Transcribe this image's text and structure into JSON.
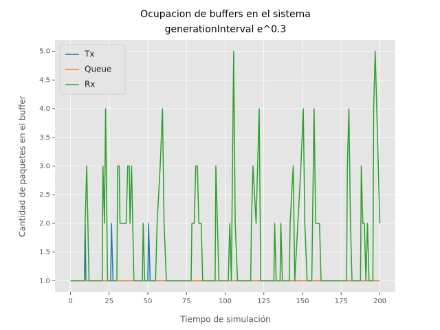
{
  "chart_data": {
    "type": "line",
    "title": [
      "Ocupacion de buffers en el sistema",
      "generationInterval e^0.3"
    ],
    "xlabel": "Tiempo de simulación",
    "ylabel": "Cantidad de paquetes en el buffer",
    "xlim": [
      -10,
      210
    ],
    "ylim": [
      0.8,
      5.2
    ],
    "xticks": [
      0,
      25,
      50,
      75,
      100,
      125,
      150,
      175,
      200
    ],
    "yticks": [
      {
        "value": 1,
        "label": "1.0"
      },
      {
        "value": 1.5,
        "label": "1.5"
      },
      {
        "value": 2,
        "label": "2.0"
      },
      {
        "value": 2.5,
        "label": "2.5"
      },
      {
        "value": 3,
        "label": "3.0"
      },
      {
        "value": 3.5,
        "label": "3.5"
      },
      {
        "value": 4,
        "label": "4.0"
      },
      {
        "value": 4.5,
        "label": "4.5"
      },
      {
        "value": 5,
        "label": "5.0"
      }
    ],
    "grid": true,
    "legend": "upper left",
    "series": [
      {
        "name": "Tx",
        "color": "#1f77b4",
        "x": [
          0,
          9,
          9.5,
          10,
          26,
          26.5,
          27.5,
          50,
          50.5,
          51.5,
          200
        ],
        "values": [
          1,
          1,
          2,
          1,
          1,
          2,
          1,
          1,
          2,
          1,
          1
        ]
      },
      {
        "name": "Queue",
        "color": "#ff7f0e",
        "x": [
          0,
          200
        ],
        "values": [
          1,
          1
        ]
      },
      {
        "name": "Rx",
        "color": "#2ca02c",
        "x": [
          0,
          9,
          9.5,
          10.5,
          12,
          20.5,
          21,
          22,
          22.7,
          24,
          30,
          30.5,
          31.5,
          32,
          36,
          37,
          38,
          38.5,
          39.5,
          41,
          46.5,
          47,
          48,
          55,
          56,
          58,
          59.5,
          60.5,
          62,
          78,
          78.5,
          80,
          81,
          82,
          83,
          84.5,
          85.5,
          93.5,
          94,
          95,
          96,
          102,
          103,
          104,
          105.5,
          106.5,
          108,
          116.5,
          117,
          118,
          120,
          121,
          122,
          123,
          131.5,
          132,
          133,
          135.5,
          136,
          137,
          141.5,
          142,
          144,
          145,
          147,
          149,
          150.5,
          151.5,
          153,
          156,
          157,
          157.5,
          158.5,
          161,
          162,
          178.5,
          179,
          180,
          181,
          182,
          187.5,
          188,
          189,
          190,
          191,
          192,
          193,
          195.5,
          196,
          197,
          198,
          199,
          200
        ],
        "values": [
          1,
          1,
          2,
          3,
          1,
          1,
          3,
          2,
          4,
          1,
          1,
          3,
          3,
          2,
          2,
          3,
          3,
          2,
          3,
          1,
          1,
          2,
          1,
          1,
          2,
          3,
          4,
          2,
          1,
          1,
          2,
          2,
          3,
          3,
          2,
          2,
          1,
          1,
          3,
          2,
          1,
          1,
          2,
          1,
          5,
          2,
          1,
          1,
          2,
          3,
          2,
          3,
          4,
          1,
          1,
          2,
          1,
          1,
          2,
          1,
          1,
          2,
          3,
          1,
          2,
          3,
          4,
          2,
          1,
          1,
          3,
          4,
          2,
          2,
          1,
          1,
          3,
          4,
          2,
          1,
          1,
          3,
          2,
          2,
          1,
          2,
          1,
          1,
          4,
          5,
          4,
          3,
          2
        ]
      }
    ]
  }
}
